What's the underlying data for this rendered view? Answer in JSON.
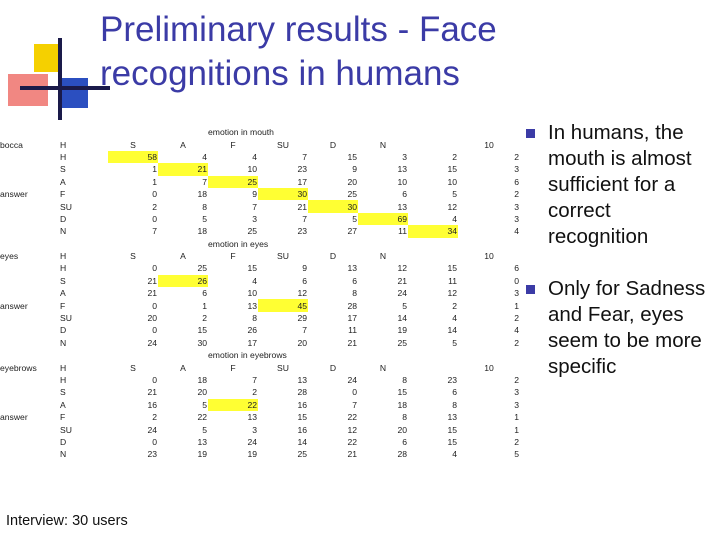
{
  "slide": {
    "title_lines": [
      "Preliminary results - Face",
      "recognitions in humans"
    ],
    "footer": "Interview: 30 users",
    "accent_color": "#3b3ba6",
    "highlight_color": "#ffff33"
  },
  "bullets": [
    "In humans, the mouth is almost sufficient for a correct recognition",
    "Only for Sadness and Fear, eyes seem to be more specific"
  ],
  "table": {
    "row_axis_label": "answer",
    "blocks": [
      {
        "caption": "emotion in mouth",
        "feature": "bocca",
        "headers": [
          "H",
          "S",
          "A",
          "F",
          "SU",
          "D",
          "N",
          "",
          "10"
        ],
        "rows": [
          {
            "label": "H",
            "values": [
              58,
              4,
              4,
              7,
              15,
              3,
              2,
              2
            ],
            "highlight": [
              0
            ]
          },
          {
            "label": "S",
            "values": [
              1,
              21,
              10,
              23,
              9,
              13,
              15,
              3
            ],
            "highlight": [
              1
            ]
          },
          {
            "label": "A",
            "values": [
              1,
              7,
              25,
              17,
              20,
              10,
              10,
              6
            ],
            "highlight": [
              2
            ]
          },
          {
            "label": "F",
            "values": [
              0,
              18,
              9,
              30,
              25,
              6,
              5,
              2
            ],
            "highlight": [
              3
            ]
          },
          {
            "label": "SU",
            "values": [
              2,
              8,
              7,
              21,
              30,
              13,
              12,
              3
            ],
            "highlight": [
              4
            ]
          },
          {
            "label": "D",
            "values": [
              0,
              5,
              3,
              7,
              5,
              69,
              4,
              3
            ],
            "highlight": [
              5
            ]
          },
          {
            "label": "N",
            "values": [
              7,
              18,
              25,
              23,
              27,
              11,
              34,
              4
            ],
            "highlight": [
              6
            ]
          }
        ]
      },
      {
        "caption": "emotion in eyes",
        "feature": "eyes",
        "headers": [
          "H",
          "S",
          "A",
          "F",
          "SU",
          "D",
          "N",
          "",
          "10"
        ],
        "rows": [
          {
            "label": "H",
            "values": [
              0,
              25,
              15,
              9,
              13,
              12,
              15,
              6
            ],
            "highlight": []
          },
          {
            "label": "S",
            "values": [
              21,
              26,
              4,
              6,
              6,
              21,
              11,
              0
            ],
            "highlight": [
              1
            ]
          },
          {
            "label": "A",
            "values": [
              21,
              6,
              10,
              12,
              8,
              24,
              12,
              3
            ],
            "highlight": []
          },
          {
            "label": "F",
            "values": [
              0,
              1,
              13,
              45,
              28,
              5,
              2,
              1
            ],
            "highlight": [
              3
            ]
          },
          {
            "label": "SU",
            "values": [
              20,
              2,
              8,
              29,
              17,
              14,
              4,
              2
            ],
            "highlight": []
          },
          {
            "label": "D",
            "values": [
              0,
              15,
              26,
              7,
              11,
              19,
              14,
              4
            ],
            "highlight": []
          },
          {
            "label": "N",
            "values": [
              24,
              30,
              17,
              20,
              21,
              25,
              5,
              2
            ],
            "highlight": []
          }
        ]
      },
      {
        "caption": "emotion in eyebrows",
        "feature": "eyebrows",
        "headers": [
          "H",
          "S",
          "A",
          "F",
          "SU",
          "D",
          "N",
          "",
          "10"
        ],
        "rows": [
          {
            "label": "H",
            "values": [
              0,
              18,
              7,
              13,
              24,
              8,
              23,
              2
            ],
            "highlight": []
          },
          {
            "label": "S",
            "values": [
              21,
              20,
              2,
              28,
              0,
              15,
              6,
              3
            ],
            "highlight": []
          },
          {
            "label": "A",
            "values": [
              16,
              5,
              22,
              16,
              7,
              18,
              8,
              3
            ],
            "highlight": [
              2
            ]
          },
          {
            "label": "F",
            "values": [
              2,
              22,
              13,
              15,
              22,
              8,
              13,
              1
            ],
            "highlight": []
          },
          {
            "label": "SU",
            "values": [
              24,
              5,
              3,
              16,
              12,
              20,
              15,
              1
            ],
            "highlight": []
          },
          {
            "label": "D",
            "values": [
              0,
              13,
              24,
              14,
              22,
              6,
              15,
              2
            ],
            "highlight": []
          },
          {
            "label": "N",
            "values": [
              23,
              19,
              19,
              25,
              21,
              28,
              4,
              5
            ],
            "highlight": []
          }
        ]
      }
    ]
  }
}
